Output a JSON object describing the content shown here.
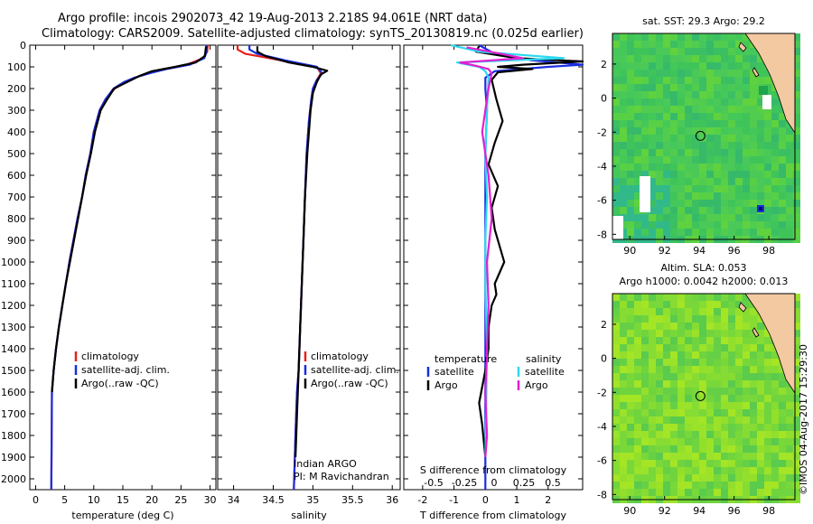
{
  "header": {
    "title_line1": "Argo profile: incois 2902073_42 19-Aug-2013 2.218S 94.061E (NRT data)",
    "title_line2": "Climatology: CARS2009. Satellite-adjusted climatology: synTS_20130819.nc (0.025d earlier)"
  },
  "side_label": "©IMOS 04-Aug-2017 15:29:30",
  "colors": {
    "climatology": "#e8201c",
    "satellite": "#1a2ee0",
    "argo": "#000000",
    "cyan": "#2fd8f0",
    "magenta": "#e020d0"
  },
  "chart_data": [
    {
      "type": "line",
      "xlabel": "temperature (deg C)",
      "ylabel": "",
      "xlim": [
        -1,
        31
      ],
      "ylim": [
        2050,
        0
      ],
      "xticks": [
        0,
        5,
        10,
        15,
        20,
        25,
        30
      ],
      "yticks": [
        0,
        100,
        200,
        300,
        400,
        500,
        600,
        700,
        800,
        900,
        1000,
        1100,
        1200,
        1300,
        1400,
        1500,
        1600,
        1700,
        1800,
        1900,
        2000
      ],
      "legend": [
        "climatology",
        "satellite-adj. clim.",
        "Argo(..raw -QC)"
      ],
      "series": [
        {
          "name": "climatology",
          "color_key": "climatology",
          "x": [
            29.6,
            29.5,
            28.8,
            26,
            22,
            19.5,
            17,
            15.5,
            13.6,
            12,
            11,
            10,
            9.4,
            8.6,
            8,
            7.2,
            6.5,
            5.8,
            5.2,
            4.6,
            4,
            3.5,
            3.1,
            2.8,
            2.7
          ],
          "y": [
            0,
            30,
            60,
            90,
            110,
            130,
            150,
            170,
            200,
            250,
            300,
            400,
            500,
            600,
            700,
            800,
            900,
            1000,
            1100,
            1200,
            1300,
            1400,
            1500,
            1600,
            2050
          ]
        },
        {
          "name": "satellite-adj. clim.",
          "color_key": "satellite",
          "x": [
            29.4,
            29.4,
            29,
            26.5,
            22.5,
            19.5,
            17,
            15.2,
            13.4,
            12,
            11,
            10,
            9.4,
            8.6,
            8,
            7.2,
            6.5,
            5.8,
            5.2,
            4.6,
            4,
            3.5,
            3.1,
            2.8,
            2.7
          ],
          "y": [
            0,
            30,
            60,
            90,
            110,
            130,
            150,
            170,
            200,
            250,
            300,
            400,
            500,
            600,
            700,
            800,
            900,
            1000,
            1100,
            1200,
            1300,
            1400,
            1500,
            1600,
            2050
          ]
        },
        {
          "name": "Argo(..raw -QC)",
          "color_key": "argo",
          "x": [
            29.3,
            29.1,
            27.5,
            24,
            20,
            18,
            16.5,
            15,
            13.5,
            12.3,
            11.2,
            10.2,
            9.5,
            8.7,
            8,
            7.3,
            6.6,
            5.9,
            5.2,
            4.6,
            4,
            3.5,
            3.1,
            2.8
          ],
          "y": [
            5,
            50,
            80,
            100,
            120,
            140,
            160,
            180,
            200,
            250,
            300,
            400,
            500,
            600,
            700,
            800,
            900,
            1000,
            1100,
            1200,
            1300,
            1400,
            1500,
            1600
          ]
        }
      ]
    },
    {
      "type": "line",
      "xlabel": "salinity",
      "xlim": [
        33.8,
        36.1
      ],
      "ylim": [
        2050,
        0
      ],
      "xticks": [
        34,
        34.5,
        35,
        35.5,
        36
      ],
      "yticks": [
        0,
        100,
        200,
        300,
        400,
        500,
        600,
        700,
        800,
        900,
        1000,
        1100,
        1200,
        1300,
        1400,
        1500,
        1600,
        1700,
        1800,
        1900,
        2000
      ],
      "legend": [
        "climatology",
        "satellite-adj. clim.",
        "Argo(..raw -QC)"
      ],
      "annotation": [
        "Indian ARGO",
        "PI: M Ravichandran"
      ],
      "series": [
        {
          "name": "climatology",
          "color_key": "climatology",
          "x": [
            34.05,
            34.05,
            34.15,
            34.6,
            35.05,
            35.1,
            35.05,
            35,
            34.98,
            34.95,
            34.92,
            34.9,
            34.88,
            34.86,
            34.84,
            34.82,
            34.8,
            34.79,
            34.78,
            34.76
          ],
          "y": [
            0,
            20,
            40,
            70,
            100,
            130,
            160,
            200,
            250,
            350,
            500,
            700,
            900,
            1100,
            1300,
            1500,
            1600,
            1700,
            1800,
            2050
          ]
        },
        {
          "name": "satellite-adj. clim.",
          "color_key": "satellite",
          "x": [
            34.2,
            34.2,
            34.3,
            34.65,
            35.05,
            35.12,
            35.05,
            35,
            34.98,
            34.95,
            34.92,
            34.9,
            34.88,
            34.86,
            34.84,
            34.82,
            34.8,
            34.79,
            34.78,
            34.76
          ],
          "y": [
            0,
            20,
            40,
            70,
            100,
            130,
            160,
            200,
            250,
            350,
            500,
            700,
            900,
            1100,
            1300,
            1500,
            1600,
            1700,
            1800,
            2050
          ]
        },
        {
          "name": "Argo(..raw -QC)",
          "color_key": "argo",
          "x": [
            34.3,
            34.3,
            34.4,
            34.7,
            35.0,
            35.18,
            35.1,
            35.05,
            35,
            34.97,
            34.93,
            34.9,
            34.88,
            34.86,
            34.84,
            34.82,
            34.8,
            34.78
          ],
          "y": [
            5,
            30,
            50,
            80,
            100,
            118,
            135,
            170,
            220,
            300,
            500,
            700,
            900,
            1100,
            1300,
            1500,
            1700,
            1900
          ]
        }
      ]
    },
    {
      "type": "line",
      "xlabel": "T difference from climatology",
      "xlabel_top": "S difference from climatology",
      "xlim": [
        -2.6,
        3.1
      ],
      "ylim": [
        2050,
        0
      ],
      "xticks": [
        -2,
        -1,
        0,
        1,
        2
      ],
      "xticks_s_labels": [
        "-0.5",
        "-0.25",
        "0",
        "0.25",
        "0.5"
      ],
      "yticks": [
        0,
        100,
        200,
        300,
        400,
        500,
        600,
        700,
        800,
        900,
        1000,
        1100,
        1200,
        1300,
        1400,
        1500,
        1600,
        1700,
        1800,
        1900,
        2000
      ],
      "legend_groups": [
        {
          "title": "temperature",
          "items": [
            {
              "label": "satellite",
              "color_key": "satellite"
            },
            {
              "label": "Argo",
              "color_key": "argo"
            }
          ]
        },
        {
          "title": "salinity",
          "items": [
            {
              "label": "satellite",
              "color_key": "cyan"
            },
            {
              "label": "Argo",
              "color_key": "magenta"
            }
          ]
        }
      ],
      "series": [
        {
          "name": "T satellite",
          "color_key": "satellite",
          "x": [
            -0.2,
            0.3,
            1.5,
            3.1,
            2,
            0.3,
            0,
            0,
            0.05,
            0,
            0,
            0,
            0,
            0
          ],
          "y": [
            0,
            40,
            70,
            90,
            100,
            120,
            150,
            200,
            300,
            500,
            800,
            1200,
            1600,
            2050
          ]
        },
        {
          "name": "T Argo",
          "color_key": "argo",
          "x": [
            -0.2,
            -0.3,
            1,
            3.1,
            1.2,
            0.4,
            1.5,
            0.4,
            0.2,
            0.35,
            0.55,
            0.3,
            0.1,
            0.4,
            0.2,
            0.3,
            0.6,
            0.3,
            0.35,
            0.2,
            0.1,
            0.1,
            0,
            -0.2,
            -0.1,
            0
          ],
          "y": [
            5,
            30,
            60,
            75,
            90,
            100,
            110,
            125,
            160,
            250,
            350,
            450,
            550,
            650,
            750,
            850,
            1000,
            1100,
            1150,
            1200,
            1300,
            1400,
            1500,
            1650,
            1750,
            1900
          ]
        },
        {
          "name": "S satellite",
          "color_key": "cyan",
          "x": [
            -1.1,
            -0.2,
            2.5,
            -0.9,
            -0.2,
            0,
            0.1,
            0.05,
            0,
            0.05,
            0,
            0,
            0.05,
            0
          ],
          "y": [
            0,
            30,
            60,
            80,
            100,
            120,
            150,
            300,
            500,
            700,
            900,
            1100,
            1400,
            1900
          ]
        },
        {
          "name": "S Argo",
          "color_key": "magenta",
          "x": [
            -0.6,
            0.5,
            1.2,
            -0.8,
            -0.3,
            0.1,
            0.2,
            0.1,
            -0.1,
            0.1,
            0.2,
            0.05,
            0.1,
            0.05,
            0,
            0.05,
            0
          ],
          "y": [
            10,
            40,
            60,
            80,
            95,
            110,
            130,
            200,
            400,
            600,
            800,
            1000,
            1200,
            1400,
            1600,
            1800,
            1900
          ]
        }
      ]
    },
    {
      "type": "heatmap",
      "title": "sat. SST: 29.3 Argo: 29.2",
      "xlim": [
        89,
        99.5
      ],
      "ylim": [
        -8.3,
        3.8
      ],
      "xticks": [
        90,
        92,
        94,
        96,
        98
      ],
      "yticks": [
        -8,
        -6,
        -4,
        -2,
        0,
        2
      ],
      "marker": [
        94.061,
        -2.218
      ]
    },
    {
      "type": "heatmap",
      "title_lines": [
        "Altim. SLA: 0.053",
        "Argo h1000: 0.0042 h2000: 0.013"
      ],
      "xlim": [
        89,
        99.5
      ],
      "ylim": [
        -8.3,
        3.8
      ],
      "xticks": [
        90,
        92,
        94,
        96,
        98
      ],
      "yticks": [
        -8,
        -6,
        -4,
        -2,
        0,
        2
      ],
      "marker": [
        94.061,
        -2.218
      ]
    }
  ]
}
